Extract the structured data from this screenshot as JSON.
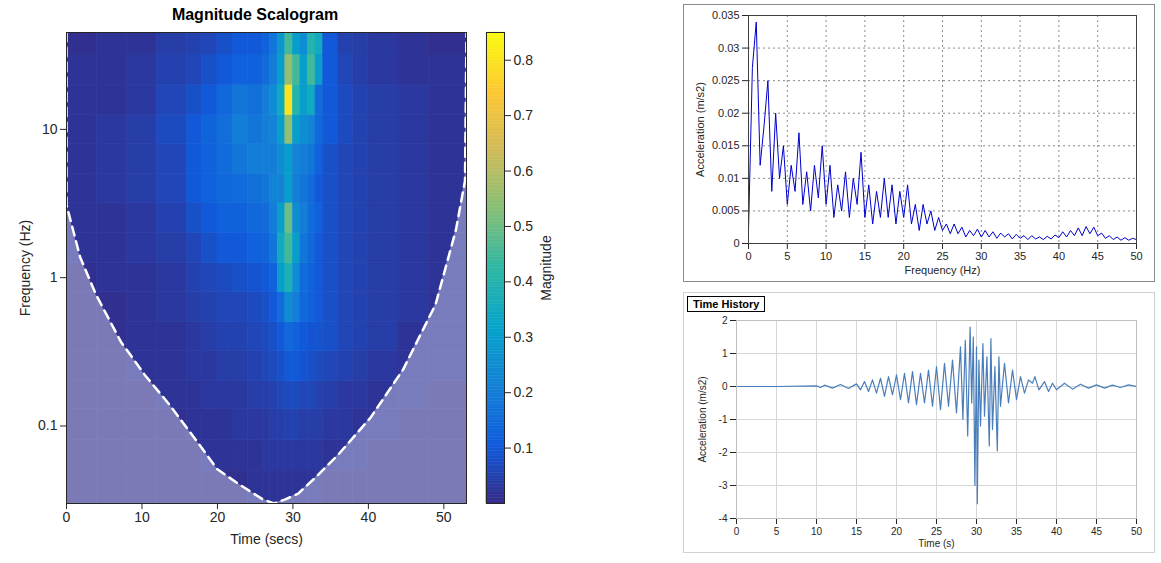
{
  "chart_data": [
    {
      "type": "heatmap",
      "title": "Magnitude Scalogram",
      "x_label": "Time (secs)",
      "y_label": "Frequency (Hz)",
      "log": "y",
      "xlim": [
        0,
        53
      ],
      "xticks": [
        0,
        10,
        20,
        30,
        40,
        50
      ],
      "ylim": [
        0.03,
        45
      ],
      "yticks": [
        0.1,
        1,
        10
      ],
      "x_edges": [
        0,
        4,
        8,
        12,
        16,
        18,
        20,
        22,
        24,
        26,
        27,
        28,
        29,
        30,
        31,
        32,
        33,
        34,
        36,
        38,
        40,
        44,
        48,
        53
      ],
      "y_edges": [
        0.03,
        0.05,
        0.08,
        0.13,
        0.2,
        0.32,
        0.5,
        0.8,
        1.25,
        2,
        3.2,
        5,
        8,
        12.5,
        20,
        32,
        45
      ],
      "values": [
        [
          0.01,
          0.01,
          0.01,
          0.01,
          0.01,
          0.01,
          0.01,
          0.01,
          0.02,
          0.02,
          0.02,
          0.02,
          0.02,
          0.02,
          0.02,
          0.02,
          0.02,
          0.01,
          0.01,
          0.01,
          0.01,
          0.01,
          0.01
        ],
        [
          0.01,
          0.01,
          0.01,
          0.01,
          0.01,
          0.02,
          0.02,
          0.02,
          0.02,
          0.03,
          0.03,
          0.03,
          0.03,
          0.03,
          0.03,
          0.03,
          0.03,
          0.02,
          0.02,
          0.02,
          0.01,
          0.01,
          0.01
        ],
        [
          0.01,
          0.01,
          0.01,
          0.01,
          0.02,
          0.02,
          0.02,
          0.03,
          0.03,
          0.03,
          0.04,
          0.04,
          0.05,
          0.05,
          0.04,
          0.04,
          0.04,
          0.03,
          0.03,
          0.02,
          0.02,
          0.01,
          0.01
        ],
        [
          0.01,
          0.01,
          0.01,
          0.02,
          0.02,
          0.03,
          0.03,
          0.03,
          0.04,
          0.04,
          0.05,
          0.06,
          0.07,
          0.07,
          0.06,
          0.06,
          0.05,
          0.04,
          0.03,
          0.03,
          0.02,
          0.02,
          0.01
        ],
        [
          0.01,
          0.01,
          0.02,
          0.02,
          0.03,
          0.03,
          0.04,
          0.04,
          0.05,
          0.06,
          0.07,
          0.08,
          0.1,
          0.1,
          0.09,
          0.08,
          0.07,
          0.06,
          0.05,
          0.04,
          0.03,
          0.02,
          0.02
        ],
        [
          0.01,
          0.01,
          0.02,
          0.02,
          0.03,
          0.04,
          0.05,
          0.05,
          0.06,
          0.07,
          0.08,
          0.1,
          0.14,
          0.12,
          0.1,
          0.09,
          0.09,
          0.08,
          0.06,
          0.05,
          0.04,
          0.02,
          0.02
        ],
        [
          0.01,
          0.01,
          0.02,
          0.03,
          0.04,
          0.05,
          0.06,
          0.06,
          0.07,
          0.08,
          0.1,
          0.15,
          0.25,
          0.2,
          0.14,
          0.12,
          0.1,
          0.08,
          0.06,
          0.05,
          0.04,
          0.03,
          0.02
        ],
        [
          0.01,
          0.02,
          0.02,
          0.03,
          0.05,
          0.06,
          0.07,
          0.08,
          0.09,
          0.1,
          0.12,
          0.3,
          0.38,
          0.25,
          0.15,
          0.12,
          0.1,
          0.08,
          0.06,
          0.05,
          0.04,
          0.03,
          0.02
        ],
        [
          0.02,
          0.02,
          0.03,
          0.04,
          0.06,
          0.08,
          0.1,
          0.1,
          0.12,
          0.13,
          0.18,
          0.35,
          0.45,
          0.3,
          0.18,
          0.14,
          0.1,
          0.08,
          0.06,
          0.05,
          0.04,
          0.03,
          0.02
        ],
        [
          0.02,
          0.02,
          0.03,
          0.05,
          0.08,
          0.1,
          0.12,
          0.12,
          0.14,
          0.15,
          0.2,
          0.3,
          0.5,
          0.25,
          0.2,
          0.15,
          0.12,
          0.08,
          0.06,
          0.05,
          0.04,
          0.03,
          0.02
        ],
        [
          0.02,
          0.03,
          0.04,
          0.06,
          0.1,
          0.12,
          0.14,
          0.15,
          0.16,
          0.18,
          0.22,
          0.22,
          0.3,
          0.2,
          0.18,
          0.15,
          0.1,
          0.08,
          0.06,
          0.05,
          0.04,
          0.03,
          0.02
        ],
        [
          0.02,
          0.03,
          0.04,
          0.06,
          0.1,
          0.12,
          0.15,
          0.18,
          0.2,
          0.2,
          0.2,
          0.25,
          0.3,
          0.22,
          0.2,
          0.18,
          0.12,
          0.08,
          0.06,
          0.05,
          0.04,
          0.03,
          0.02
        ],
        [
          0.02,
          0.03,
          0.04,
          0.07,
          0.1,
          0.13,
          0.16,
          0.2,
          0.18,
          0.2,
          0.22,
          0.3,
          0.55,
          0.3,
          0.25,
          0.22,
          0.14,
          0.1,
          0.07,
          0.05,
          0.04,
          0.03,
          0.02
        ],
        [
          0.02,
          0.02,
          0.03,
          0.06,
          0.08,
          0.1,
          0.14,
          0.18,
          0.16,
          0.2,
          0.25,
          0.35,
          0.8,
          0.4,
          0.3,
          0.35,
          0.15,
          0.1,
          0.07,
          0.05,
          0.04,
          0.03,
          0.02
        ],
        [
          0.02,
          0.02,
          0.03,
          0.05,
          0.06,
          0.08,
          0.1,
          0.12,
          0.12,
          0.15,
          0.2,
          0.3,
          0.55,
          0.45,
          0.3,
          0.45,
          0.3,
          0.1,
          0.06,
          0.04,
          0.03,
          0.02,
          0.02
        ],
        [
          0.01,
          0.02,
          0.02,
          0.04,
          0.05,
          0.06,
          0.08,
          0.1,
          0.1,
          0.12,
          0.18,
          0.28,
          0.45,
          0.3,
          0.25,
          0.4,
          0.35,
          0.1,
          0.05,
          0.04,
          0.03,
          0.02,
          0.01
        ]
      ],
      "colorbar": {
        "label": "Magnitude",
        "lim": [
          0,
          0.85
        ],
        "ticks": [
          0.1,
          0.2,
          0.3,
          0.4,
          0.5,
          0.6,
          0.7,
          0.8
        ]
      },
      "cone_of_influence": {
        "x": [
          0,
          0,
          1.8,
          3.9,
          7.2,
          10.4,
          13.6,
          16.8,
          20,
          23,
          26,
          27.5,
          29,
          30.7,
          33,
          36,
          40.3,
          44.6,
          48.9,
          51.6,
          52.8,
          53
        ],
        "y": [
          45,
          3.1,
          1.38,
          0.77,
          0.37,
          0.22,
          0.14,
          0.085,
          0.051,
          0.04,
          0.032,
          0.03,
          0.032,
          0.035,
          0.045,
          0.064,
          0.114,
          0.24,
          0.66,
          2.1,
          4.5,
          45
        ]
      }
    },
    {
      "type": "line",
      "x_label": "Frequency (Hz)",
      "y_label": "Acceleration (m/s2)",
      "color": "#0000cd",
      "grid": true,
      "xlim": [
        0,
        50
      ],
      "xticks": [
        0,
        5,
        10,
        15,
        20,
        25,
        30,
        35,
        40,
        45,
        50
      ],
      "ylim": [
        0,
        0.035
      ],
      "yticks": [
        0,
        0.005,
        0.01,
        0.015,
        0.02,
        0.025,
        0.03,
        0.035
      ],
      "x": [
        0,
        0.5,
        1,
        1.5,
        2,
        2.5,
        3,
        3.5,
        4,
        4.5,
        5,
        5.5,
        6,
        6.5,
        7,
        7.5,
        8,
        8.5,
        9,
        9.5,
        10,
        10.5,
        11,
        11.5,
        12,
        12.5,
        13,
        13.5,
        14,
        14.5,
        15,
        15.5,
        16,
        16.5,
        17,
        17.5,
        18,
        18.5,
        19,
        19.5,
        20,
        20.5,
        21,
        21.5,
        22,
        22.5,
        23,
        23.5,
        24,
        24.5,
        25,
        25.5,
        26,
        26.5,
        27,
        27.5,
        28,
        28.5,
        29,
        29.5,
        30,
        30.5,
        31,
        31.5,
        32,
        32.5,
        33,
        33.5,
        34,
        34.5,
        35,
        35.5,
        36,
        36.5,
        37,
        37.5,
        38,
        38.5,
        39,
        39.5,
        40,
        40.5,
        41,
        41.5,
        42,
        42.5,
        43,
        43.5,
        44,
        44.5,
        45,
        45.5,
        46,
        46.5,
        47,
        47.5,
        48,
        48.5,
        49,
        49.5,
        50
      ],
      "values": [
        0.002,
        0.027,
        0.034,
        0.012,
        0.018,
        0.025,
        0.008,
        0.02,
        0.01,
        0.015,
        0.006,
        0.012,
        0.008,
        0.017,
        0.006,
        0.011,
        0.005,
        0.012,
        0.007,
        0.015,
        0.006,
        0.012,
        0.004,
        0.009,
        0.005,
        0.011,
        0.004,
        0.01,
        0.006,
        0.014,
        0.004,
        0.009,
        0.003,
        0.008,
        0.004,
        0.01,
        0.004,
        0.009,
        0.003,
        0.008,
        0.004,
        0.009,
        0.003,
        0.006,
        0.002,
        0.006,
        0.003,
        0.005,
        0.002,
        0.004,
        0.002,
        0.003,
        0.0015,
        0.003,
        0.0015,
        0.0025,
        0.001,
        0.002,
        0.0012,
        0.0022,
        0.001,
        0.002,
        0.001,
        0.0018,
        0.0008,
        0.0016,
        0.001,
        0.0015,
        0.0007,
        0.0014,
        0.0008,
        0.0012,
        0.0006,
        0.0012,
        0.0007,
        0.001,
        0.0006,
        0.0011,
        0.0007,
        0.0013,
        0.0009,
        0.0018,
        0.001,
        0.002,
        0.0012,
        0.0024,
        0.0012,
        0.0026,
        0.0015,
        0.0025,
        0.0012,
        0.0016,
        0.0008,
        0.0012,
        0.0006,
        0.001,
        0.0005,
        0.0009,
        0.0005,
        0.0008,
        0.0006
      ]
    },
    {
      "type": "line",
      "title": "Time History",
      "x_label": "Time (s)",
      "y_label": "Acceleration (m/s2)",
      "color": "#4a7ebb",
      "grid": true,
      "xlim": [
        0,
        50
      ],
      "xticks": [
        0,
        5,
        10,
        15,
        20,
        25,
        30,
        35,
        40,
        45,
        50
      ],
      "ylim": [
        -4,
        2
      ],
      "yticks": [
        -4,
        -3,
        -2,
        -1,
        0,
        1,
        2
      ],
      "x": [
        0,
        5,
        10,
        10.5,
        11,
        12,
        13,
        14,
        15,
        15.5,
        16,
        16.5,
        17,
        17.5,
        18,
        18.5,
        19,
        19.5,
        20,
        20.5,
        21,
        21.5,
        22,
        22.5,
        23,
        23.5,
        24,
        24.5,
        25,
        25.5,
        26,
        26.5,
        27,
        27.5,
        28,
        28.3,
        28.6,
        28.9,
        29.2,
        29.4,
        29.6,
        29.8,
        30,
        30.1,
        30.3,
        30.5,
        30.8,
        31,
        31.3,
        31.6,
        31.8,
        32,
        32.3,
        32.6,
        32.8,
        33,
        33.5,
        34,
        34.5,
        35,
        35.5,
        36,
        36.5,
        37,
        37.3,
        37.8,
        38.5,
        39,
        39.5,
        40,
        41,
        42,
        43,
        44,
        45,
        46,
        47,
        48,
        49,
        50
      ],
      "values": [
        0,
        0,
        0.02,
        -0.03,
        0.04,
        -0.05,
        0.06,
        -0.06,
        0.08,
        -0.1,
        0.15,
        -0.15,
        0.2,
        -0.2,
        0.25,
        -0.3,
        0.3,
        -0.25,
        0.35,
        -0.4,
        0.4,
        -0.5,
        0.45,
        -0.55,
        0.4,
        -0.5,
        0.5,
        -0.6,
        0.6,
        -0.7,
        0.7,
        -0.6,
        0.8,
        -0.8,
        1.2,
        -1,
        1.4,
        -1.5,
        1.8,
        -0.5,
        1.5,
        -3,
        1.2,
        -3.55,
        0.8,
        -1.2,
        1.3,
        -0.9,
        0.9,
        -1.8,
        1.45,
        -1.3,
        0.6,
        -1.95,
        0.9,
        -0.6,
        0.7,
        -0.5,
        0.5,
        -0.4,
        0.3,
        -0.2,
        0.2,
        0.1,
        0.3,
        -0.1,
        0.15,
        -0.15,
        0.1,
        -0.1,
        0.1,
        -0.08,
        0.07,
        -0.05,
        0.05,
        -0.05,
        0.04,
        -0.03,
        0.05,
        0
      ]
    }
  ]
}
